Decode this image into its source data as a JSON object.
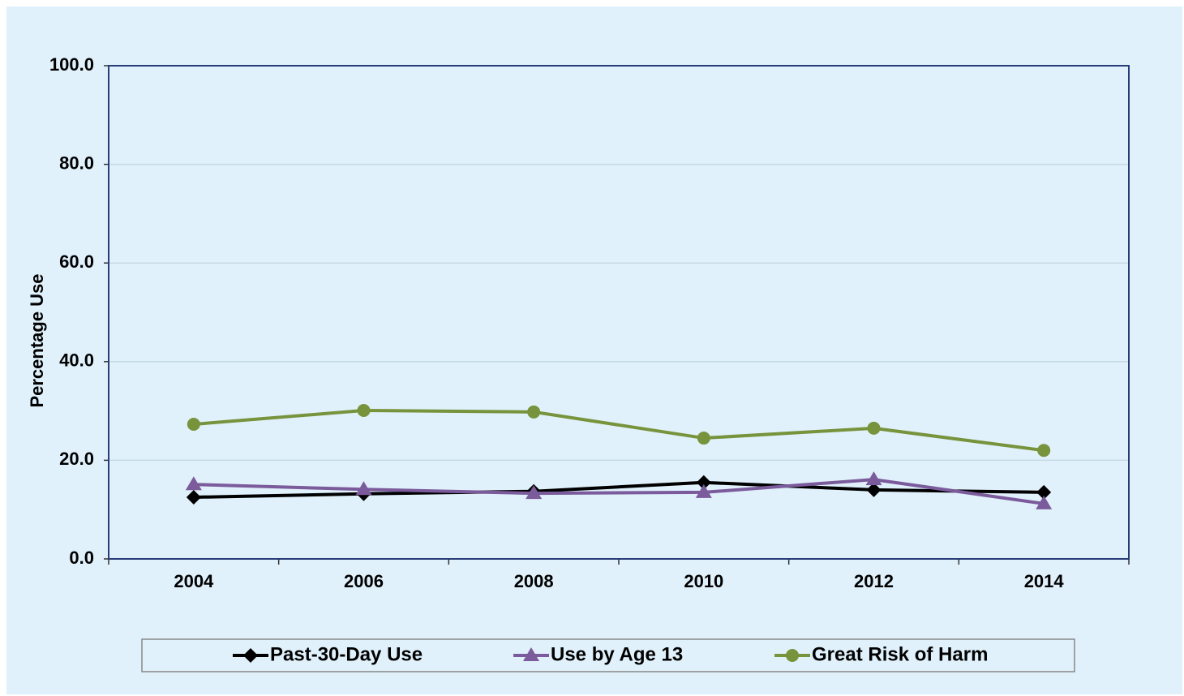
{
  "chart_data": {
    "type": "line",
    "y_label": "Percentage Use",
    "categories": [
      "2004",
      "2006",
      "2008",
      "2010",
      "2012",
      "2014"
    ],
    "series": [
      {
        "name": "Past-30-Day Use",
        "color": "#000000",
        "marker": "diamond",
        "values": [
          12.5,
          13.2,
          13.7,
          15.5,
          14.0,
          13.5
        ]
      },
      {
        "name": "Use by Age 13",
        "color": "#7b5b9b",
        "marker": "triangle",
        "values": [
          15.1,
          14.1,
          13.3,
          13.5,
          16.1,
          11.2
        ]
      },
      {
        "name": "Great Risk of Harm",
        "color": "#77933c",
        "marker": "circle",
        "values": [
          27.3,
          30.1,
          29.8,
          24.5,
          26.5,
          22.0
        ]
      }
    ],
    "ylim": [
      0,
      100
    ],
    "yticks": [
      {
        "value": 0,
        "label": "0.0"
      },
      {
        "value": 20,
        "label": "20.0"
      },
      {
        "value": 40,
        "label": "40.0"
      },
      {
        "value": 60,
        "label": "60.0"
      },
      {
        "value": 80,
        "label": "80.0"
      },
      {
        "value": 100,
        "label": "100.0"
      }
    ],
    "grid": true,
    "legend": "bottom"
  }
}
